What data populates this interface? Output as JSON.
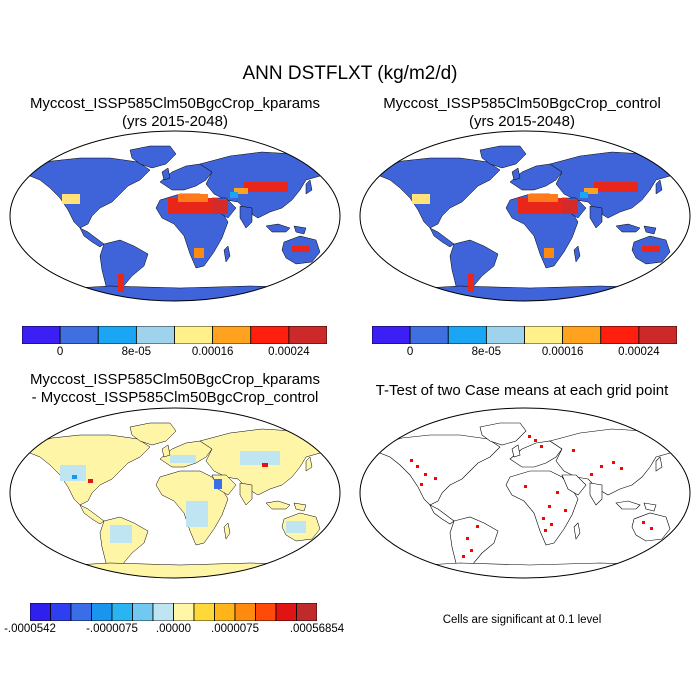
{
  "figure": {
    "title": "ANN DSTFLXT (kg/m2/d)"
  },
  "panels": {
    "case1": {
      "title_line1": "Myccost_ISSP585Clm50BgcCrop_kparams",
      "title_line2": "(yrs 2015-2048)"
    },
    "case2": {
      "title_line1": "Myccost_ISSP585Clm50BgcCrop_control",
      "title_line2": "(yrs 2015-2048)"
    },
    "diff": {
      "title_line1": "Myccost_ISSP585Clm50BgcCrop_kparams",
      "title_line2": "- Myccost_ISSP585Clm50BgcCrop_control"
    },
    "ttest": {
      "title_line1": "T-Test of two Case means at each grid point",
      "note": "Cells are significant at 0.1 level"
    }
  },
  "colorbars": {
    "case": {
      "colors": [
        "#3b1ff5",
        "#3f6fe0",
        "#1aa6f2",
        "#9fd3ec",
        "#fff08a",
        "#ffa21f",
        "#ff1f0f",
        "#cc2a2a"
      ],
      "labels": [
        "0",
        "8e-05",
        "0.00016",
        "0.00024"
      ]
    },
    "diff": {
      "colors": [
        "#3020f0",
        "#2d3ff0",
        "#3a6ee8",
        "#1a95ee",
        "#2ab5f2",
        "#72c8f0",
        "#bfe4f2",
        "#fff6a8",
        "#ffd93a",
        "#ffb41a",
        "#ff8a10",
        "#ff4a0a",
        "#e11414",
        "#c02a2a"
      ],
      "labels": [
        "-.0000542",
        "-.0000075",
        ".00000",
        ".0000075",
        ".00056854"
      ]
    }
  },
  "map_fills": {
    "ocean": "#ffffff",
    "land_case": "#3f63d8",
    "land_diff": "#fff5a6",
    "significant_cells": "#ff0000"
  }
}
